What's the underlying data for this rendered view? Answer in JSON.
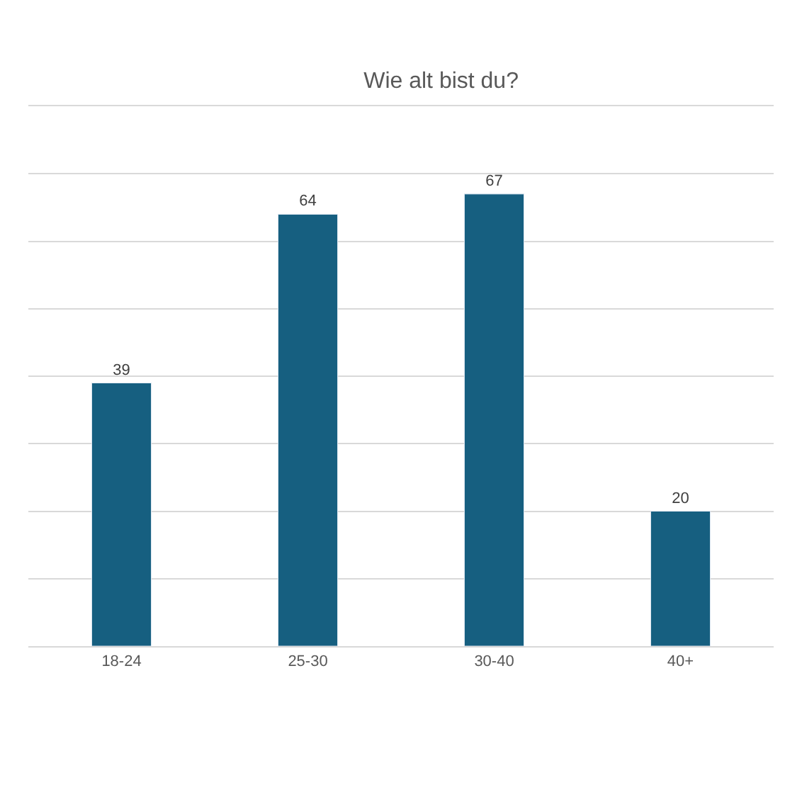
{
  "chart_data": {
    "type": "bar",
    "title": "Wie alt bist du?",
    "categories": [
      "18-24",
      "25-30",
      "30-40",
      "40+"
    ],
    "values": [
      39,
      64,
      67,
      20
    ],
    "color": "#165f80",
    "data_labels": true,
    "ylim": [
      0,
      80
    ],
    "grid": "y",
    "tick_labels": "x"
  }
}
